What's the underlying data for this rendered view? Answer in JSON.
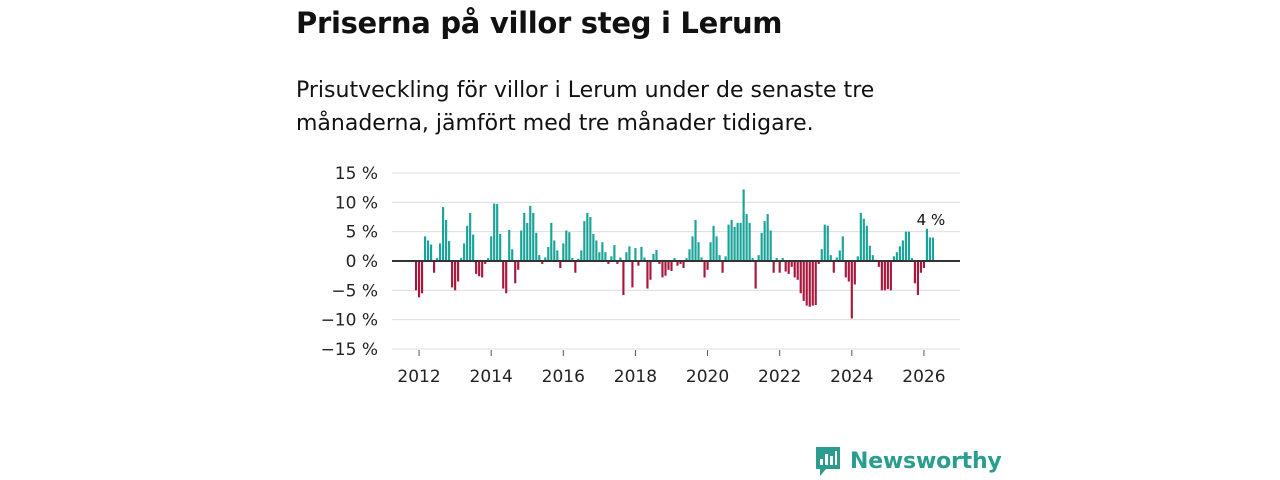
{
  "header": {
    "title": "Priserna på villor steg i Lerum",
    "subtitle": "Prisutveckling för villor i Lerum under de senaste tre månaderna, jämfört med tre månader tidigare."
  },
  "brand": {
    "name": "Newsworthy"
  },
  "colors": {
    "positive": "#1aa398",
    "negative": "#a8183e",
    "grid": "#dddddd",
    "zero": "#333333",
    "brand": "#2a9d8f"
  },
  "chart_data": {
    "type": "bar",
    "title": "",
    "xlabel": "",
    "ylabel": "",
    "ylim": [
      -15,
      15
    ],
    "yticks": [
      15,
      10,
      5,
      0,
      -5,
      -10,
      -15
    ],
    "ytick_labels": [
      "15 %",
      "10 %",
      "5 %",
      "0 %",
      "−5 %",
      "−10 %",
      "−15 %"
    ],
    "xlim": [
      2011.25,
      2027.0
    ],
    "xticks": [
      2012,
      2014,
      2016,
      2018,
      2020,
      2022,
      2024,
      2026
    ],
    "xtick_labels": [
      "2012",
      "2014",
      "2016",
      "2018",
      "2020",
      "2022",
      "2024",
      "2026"
    ],
    "annotation": {
      "label": "4 %",
      "x": 2026.0
    },
    "x_start": 2011.917,
    "x_step": 0.08333,
    "values": [
      -5,
      -6.2,
      -5.5,
      4.2,
      3.5,
      2.8,
      -2,
      0.5,
      3,
      9.2,
      7,
      3.4,
      -4.5,
      -5,
      -3.5,
      0.5,
      3,
      6,
      8.2,
      4.5,
      -2.2,
      -2.6,
      -2.8,
      -0.5,
      0.5,
      4.2,
      9.8,
      9.7,
      4.6,
      -4.7,
      -5.5,
      5.3,
      2,
      -3.8,
      -1.5,
      5.2,
      8.2,
      6.5,
      9.4,
      8.2,
      4.8,
      1,
      -0.5,
      0.6,
      2.4,
      6.5,
      3.5,
      1.8,
      -1.2,
      3,
      5.2,
      4.9,
      0.5,
      -2,
      0.4,
      1.8,
      6.8,
      8.2,
      7.5,
      4.6,
      3.5,
      1.5,
      3.2,
      1.5,
      -0.5,
      0.8,
      2.7,
      -0.5,
      0.6,
      -5.8,
      1.5,
      2.5,
      -4.5,
      2.2,
      -0.8,
      2.4,
      0.6,
      -4.7,
      -3.2,
      1.2,
      1.9,
      -0.5,
      -2.8,
      -2.5,
      -1.5,
      -1.7,
      0.5,
      -0.8,
      -0.5,
      -1.2,
      0.5,
      2,
      4.2,
      7,
      3.2,
      0.6,
      -2.8,
      -1.5,
      3.2,
      6,
      4.2,
      1,
      -2,
      0.8,
      6.2,
      7,
      5.8,
      6.5,
      6.5,
      12.2,
      8,
      6.5,
      0.5,
      -4.7,
      1,
      4.8,
      6.8,
      8,
      5.2,
      -2,
      0.5,
      -2,
      0.5,
      -1.8,
      -2.2,
      -1,
      -2.8,
      -3.2,
      -5.5,
      -6.8,
      -7.6,
      -7.8,
      -7.6,
      -7.5,
      -0.5,
      2,
      6.2,
      6,
      1,
      -2,
      0.6,
      1.8,
      4.2,
      -2.8,
      -3.5,
      -9.8,
      -4,
      0.8,
      8.2,
      7.2,
      6,
      2.6,
      1,
      0.2,
      -1,
      -5,
      -5,
      -4.8,
      -5,
      0.8,
      1.5,
      2.5,
      3.5,
      5,
      5,
      0.5,
      -3.8,
      -5.8,
      -2,
      -1.2,
      5.5,
      4,
      4
    ]
  }
}
